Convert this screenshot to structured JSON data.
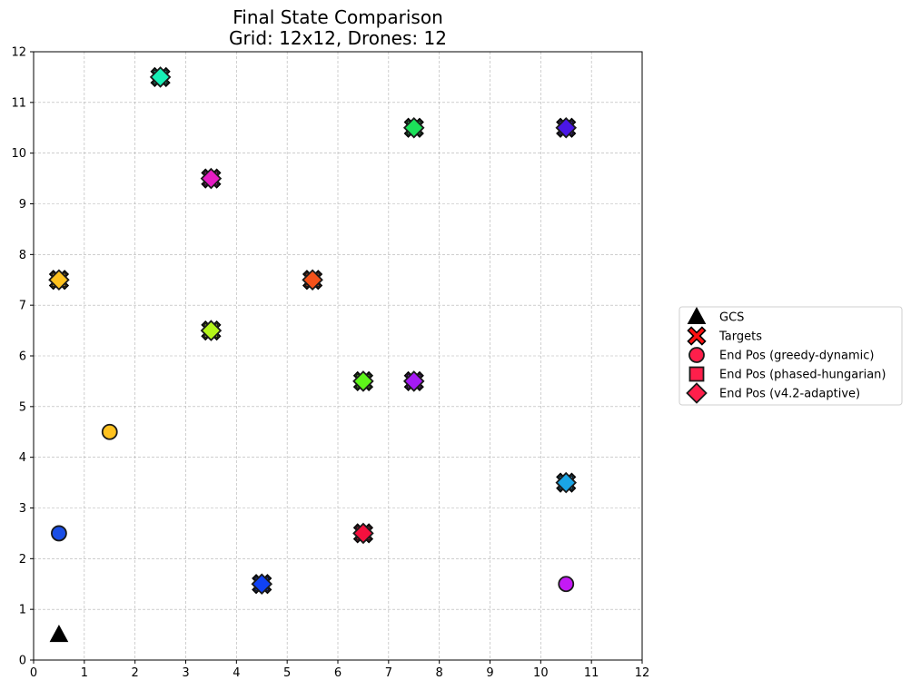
{
  "chart_data": {
    "type": "scatter",
    "title": "Final State Comparison",
    "subtitle": "Grid: 12x12, Drones: 12",
    "xlim": [
      0,
      12
    ],
    "ylim": [
      0,
      12
    ],
    "xticks": [
      "0",
      "1",
      "2",
      "3",
      "4",
      "5",
      "6",
      "7",
      "8",
      "9",
      "10",
      "11",
      "12"
    ],
    "yticks": [
      "0",
      "1",
      "2",
      "3",
      "4",
      "5",
      "6",
      "7",
      "8",
      "9",
      "10",
      "11",
      "12"
    ],
    "grid": true,
    "legend_position": "right",
    "legend": [
      {
        "label": "GCS",
        "marker": "triangle",
        "color": "#000000"
      },
      {
        "label": "Targets",
        "marker": "x",
        "color": "#ff1111"
      },
      {
        "label": "End Pos (greedy-dynamic)",
        "marker": "circle",
        "color": "#ff1f4b"
      },
      {
        "label": "End Pos (phased-hungarian)",
        "marker": "square",
        "color": "#ff1f4b"
      },
      {
        "label": "End Pos (v4.2-adaptive)",
        "marker": "diamond",
        "color": "#ff1f4b"
      }
    ],
    "gcs": {
      "x": 0.5,
      "y": 0.5
    },
    "drones": [
      {
        "target": [
          2.5,
          11.5
        ],
        "greedy": [
          2.5,
          11.5
        ],
        "phased": [
          2.5,
          11.5
        ],
        "adaptive": [
          2.5,
          11.5
        ],
        "color": "#18f0b6"
      },
      {
        "target": [
          7.5,
          10.5
        ],
        "greedy": [
          7.5,
          10.5
        ],
        "phased": [
          7.5,
          10.5
        ],
        "adaptive": [
          7.5,
          10.5
        ],
        "color": "#1ce15a"
      },
      {
        "target": [
          10.5,
          10.5
        ],
        "greedy": [
          10.5,
          10.5
        ],
        "phased": [
          10.5,
          10.5
        ],
        "adaptive": [
          10.5,
          10.5
        ],
        "color": "#4a16e6"
      },
      {
        "target": [
          3.5,
          9.5
        ],
        "greedy": [
          3.5,
          9.5
        ],
        "phased": [
          3.5,
          9.5
        ],
        "adaptive": [
          3.5,
          9.5
        ],
        "color": "#e61cc4"
      },
      {
        "target": [
          0.5,
          7.5
        ],
        "greedy": [
          0.5,
          7.5
        ],
        "phased": [
          0.5,
          7.5
        ],
        "adaptive": [
          0.5,
          7.5
        ],
        "color": "#ffc21f"
      },
      {
        "target": [
          5.5,
          7.5
        ],
        "greedy": [
          5.5,
          7.5
        ],
        "phased": [
          5.5,
          7.5
        ],
        "adaptive": [
          5.5,
          7.5
        ],
        "color": "#f5521a"
      },
      {
        "target": [
          3.5,
          6.5
        ],
        "greedy": [
          3.5,
          6.5
        ],
        "phased": [
          3.5,
          6.5
        ],
        "adaptive": [
          3.5,
          6.5
        ],
        "color": "#b4f51a"
      },
      {
        "target": [
          6.5,
          5.5
        ],
        "greedy": [
          6.5,
          5.5
        ],
        "phased": [
          6.5,
          5.5
        ],
        "adaptive": [
          6.5,
          5.5
        ],
        "color": "#5ef51a"
      },
      {
        "target": [
          7.5,
          5.5
        ],
        "greedy": [
          7.5,
          5.5
        ],
        "phased": [
          7.5,
          5.5
        ],
        "adaptive": [
          7.5,
          5.5
        ],
        "color": "#a51af5"
      },
      {
        "target": [
          10.5,
          3.5
        ],
        "greedy": [
          10.5,
          3.5
        ],
        "phased": [
          10.5,
          3.5
        ],
        "adaptive": [
          10.5,
          3.5
        ],
        "color": "#1aa5e6"
      },
      {
        "target": [
          6.5,
          2.5
        ],
        "greedy": [
          6.5,
          2.5
        ],
        "phased": [
          6.5,
          2.5
        ],
        "adaptive": [
          6.5,
          2.5
        ],
        "color": "#f5103e"
      },
      {
        "target": [
          4.5,
          1.5
        ],
        "greedy": [
          4.5,
          1.5
        ],
        "phased": [
          4.5,
          1.5
        ],
        "adaptive": [
          4.5,
          1.5
        ],
        "color": "#1042f5"
      }
    ],
    "greedy_only": [
      {
        "x": 1.5,
        "y": 4.5,
        "color": "#ffc21f"
      },
      {
        "x": 0.5,
        "y": 2.5,
        "color": "#1a4ee6"
      },
      {
        "x": 10.5,
        "y": 1.5,
        "color": "#c41af5"
      }
    ]
  }
}
